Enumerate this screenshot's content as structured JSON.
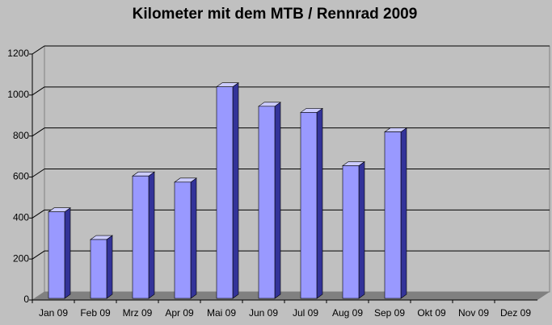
{
  "chart_data": {
    "type": "bar3d",
    "title": "Kilometer mit dem MTB / Rennrad 2009",
    "categories": [
      "Jan 09",
      "Feb 09",
      "Mrz 09",
      "Apr 09",
      "Mai 09",
      "Jun 09",
      "Jul 09",
      "Aug 09",
      "Sep 09",
      "Okt 09",
      "Nov 09",
      "Dez 09"
    ],
    "values": [
      430,
      295,
      605,
      575,
      1040,
      945,
      915,
      655,
      820,
      null,
      null,
      null
    ],
    "color": "#9999ff",
    "ylim": [
      0,
      1200
    ],
    "yticks": [
      0,
      200,
      400,
      600,
      800,
      1000,
      1200
    ],
    "grid": true
  }
}
